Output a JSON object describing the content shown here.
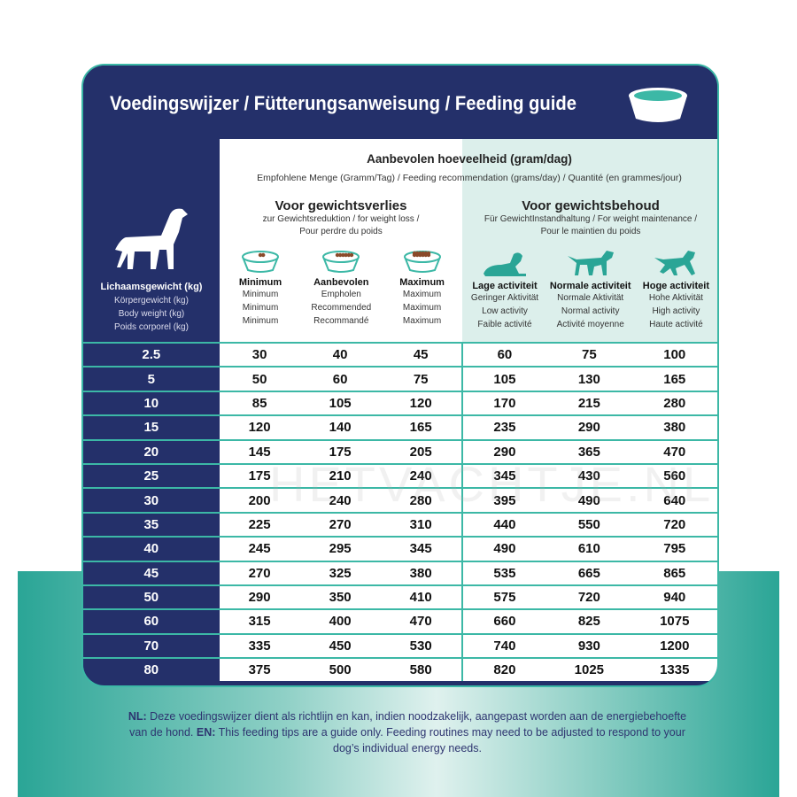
{
  "title": "Voedingswijzer / Fütterungsanweisung / Feeding guide",
  "header": {
    "main": "Aanbevolen hoeveelheid (gram/dag)",
    "sub": "Empfohlene Menge (Gramm/Tag) / Feeding recommendation (grams/day) / Quantité (en grammes/jour)"
  },
  "weight_col": {
    "nl": "Lichaamsgewicht (kg)",
    "de": "Körpergewicht (kg)",
    "en": "Body weight (kg)",
    "fr": "Poids corporel (kg)"
  },
  "loss": {
    "title": "Voor gewichtsverlies",
    "sub1": "zur Gewichtsreduktion / for weight loss /",
    "sub2": "Pour perdre du poids",
    "cols": [
      {
        "nl": "Minimum",
        "de": "Minimum",
        "en": "Minimum",
        "fr": "Minimum",
        "icon": "bowl-few-kibble-icon"
      },
      {
        "nl": "Aanbevolen",
        "de": "Empholen",
        "en": "Recommended",
        "fr": "Recommandé",
        "icon": "bowl-half-kibble-icon"
      },
      {
        "nl": "Maximum",
        "de": "Maximum",
        "en": "Maximum",
        "fr": "Maximum",
        "icon": "bowl-full-kibble-icon"
      }
    ]
  },
  "maint": {
    "title": "Voor gewichtsbehoud",
    "sub1": "Für GewichtInstandhaltung / For weight maintenance /",
    "sub2": "Pour le maintien du poids",
    "cols": [
      {
        "nl": "Lage activiteit",
        "de": "Geringer Aktivität",
        "en": "Low activity",
        "fr": "Faible activité",
        "icon": "dog-lying-icon"
      },
      {
        "nl": "Normale activiteit",
        "de": "Normale Aktivität",
        "en": "Normal activity",
        "fr": "Activité moyenne",
        "icon": "dog-walking-icon"
      },
      {
        "nl": "Hoge activiteit",
        "de": "Hohe Aktivität",
        "en": "High activity",
        "fr": "Haute activité",
        "icon": "dog-running-icon"
      }
    ]
  },
  "rows": [
    [
      "2.5",
      "30",
      "40",
      "45",
      "60",
      "75",
      "100"
    ],
    [
      "5",
      "50",
      "60",
      "75",
      "105",
      "130",
      "165"
    ],
    [
      "10",
      "85",
      "105",
      "120",
      "170",
      "215",
      "280"
    ],
    [
      "15",
      "120",
      "140",
      "165",
      "235",
      "290",
      "380"
    ],
    [
      "20",
      "145",
      "175",
      "205",
      "290",
      "365",
      "470"
    ],
    [
      "25",
      "175",
      "210",
      "240",
      "345",
      "430",
      "560"
    ],
    [
      "30",
      "200",
      "240",
      "280",
      "395",
      "490",
      "640"
    ],
    [
      "35",
      "225",
      "270",
      "310",
      "440",
      "550",
      "720"
    ],
    [
      "40",
      "245",
      "295",
      "345",
      "490",
      "610",
      "795"
    ],
    [
      "45",
      "270",
      "325",
      "380",
      "535",
      "665",
      "865"
    ],
    [
      "50",
      "290",
      "350",
      "410",
      "575",
      "720",
      "940"
    ],
    [
      "60",
      "315",
      "400",
      "470",
      "660",
      "825",
      "1075"
    ],
    [
      "70",
      "335",
      "450",
      "530",
      "740",
      "930",
      "1200"
    ],
    [
      "80",
      "375",
      "500",
      "580",
      "820",
      "1025",
      "1335"
    ]
  ],
  "watermark": "HETVACHTJE.NL",
  "note": {
    "nl_label": "NL:",
    "nl": " Deze voedingswijzer dient als richtlijn en kan, indien noodzakelijk, aangepast worden aan de energiebehoefte van de hond. ",
    "en_label": "EN:",
    "en": " This feeding tips are a guide only. Feeding routines may need to be adjusted to respond to your dog’s individual energy needs."
  },
  "colors": {
    "navy": "#24306a",
    "teal": "#3cb8a6",
    "mint": "#dcefeb"
  }
}
